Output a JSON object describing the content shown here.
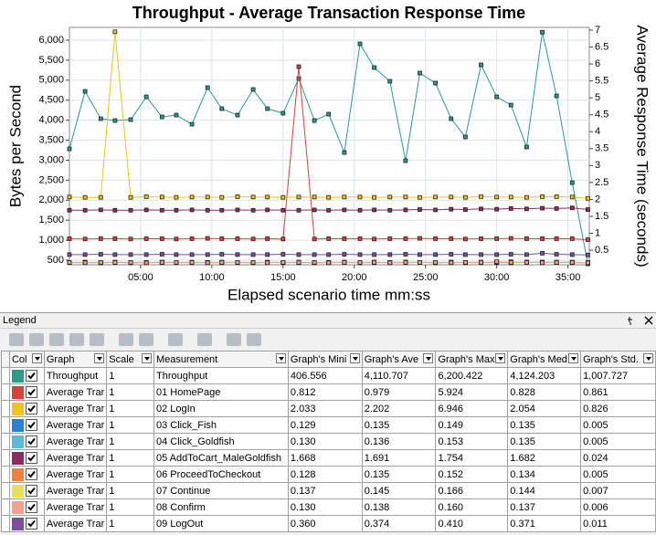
{
  "chart_data": {
    "type": "line",
    "title": "Throughput - Average Transaction Response Time",
    "xlabel": "Elapsed scenario time mm:ss",
    "ylabel": "Bytes per Second",
    "y2label": "Average Response Time (seconds)",
    "x": [
      0,
      1.1,
      2.2,
      3.2,
      4.3,
      5.4,
      6.5,
      7.5,
      8.6,
      9.7,
      10.7,
      11.8,
      12.9,
      13.9,
      15.0,
      16.1,
      17.2,
      18.2,
      19.3,
      20.4,
      21.4,
      22.5,
      23.6,
      24.6,
      25.7,
      26.8,
      27.8,
      28.9,
      30.0,
      31.0,
      32.1,
      33.2,
      34.2,
      35.3,
      36.4
    ],
    "xlim": [
      0,
      36.5
    ],
    "xticks": [
      {
        "value": 5,
        "label": "05:00"
      },
      {
        "value": 10,
        "label": "10:00"
      },
      {
        "value": 15,
        "label": "15:00"
      },
      {
        "value": 20,
        "label": "20:00"
      },
      {
        "value": 25,
        "label": "25:00"
      },
      {
        "value": 30,
        "label": "30:00"
      },
      {
        "value": 35,
        "label": "35:00"
      }
    ],
    "ylim": [
      386,
      6320
    ],
    "yticks": [
      500,
      {
        "value": 1000,
        "label": "1,000"
      },
      {
        "value": 1500,
        "label": "1,500"
      },
      {
        "value": 2000,
        "label": "2,000"
      },
      {
        "value": 2500,
        "label": "2,500"
      },
      {
        "value": 3000,
        "label": "3,000"
      },
      {
        "value": 3500,
        "label": "3,500"
      },
      {
        "value": 4000,
        "label": "4,000"
      },
      {
        "value": 4500,
        "label": "4,500"
      },
      {
        "value": 5000,
        "label": "5,000"
      },
      {
        "value": 5500,
        "label": "5,500"
      },
      {
        "value": 6000,
        "label": "6,000"
      }
    ],
    "y2lim": [
      0.07,
      7.08
    ],
    "y2ticks": [
      0.5,
      1,
      1.5,
      2,
      2.5,
      3,
      3.5,
      4,
      4.5,
      5,
      5.5,
      6,
      6.5,
      7
    ],
    "grid": true,
    "series": [
      {
        "name": "Throughput",
        "color": "#2e9a8a",
        "values": [
          3283,
          4721,
          4037,
          3991,
          4014,
          4584,
          4082,
          4128,
          3900,
          4813,
          4288,
          4128,
          4767,
          4288,
          4174,
          5041,
          3991,
          4151,
          3192,
          5909,
          5315,
          4973,
          2986,
          5178,
          4927,
          4037,
          3580,
          5384,
          4584,
          4379,
          3329,
          6200,
          4607,
          2438,
          407
        ]
      },
      {
        "name": "01 HomePage",
        "color": "#d9413a",
        "axis": "y2",
        "values": [
          0.84,
          0.83,
          0.84,
          0.84,
          0.83,
          0.84,
          0.84,
          0.83,
          0.84,
          0.85,
          0.84,
          0.84,
          0.83,
          0.84,
          0.83,
          5.92,
          0.83,
          0.84,
          0.84,
          0.84,
          0.83,
          0.84,
          0.84,
          0.85,
          0.84,
          0.84,
          0.83,
          0.84,
          0.84,
          0.85,
          0.84,
          0.84,
          0.84,
          0.84,
          0.81
        ]
      },
      {
        "name": "02 LogIn",
        "color": "#f0c419",
        "axis": "y2",
        "values": [
          2.07,
          2.06,
          2.06,
          6.95,
          2.06,
          2.08,
          2.07,
          2.06,
          2.07,
          2.07,
          2.06,
          2.08,
          2.07,
          2.07,
          2.06,
          2.07,
          2.07,
          2.06,
          2.07,
          2.07,
          2.06,
          2.07,
          2.07,
          2.06,
          2.07,
          2.07,
          2.06,
          2.08,
          2.07,
          2.07,
          2.06,
          2.08,
          2.08,
          2.07,
          2.03
        ]
      },
      {
        "name": "03 Click_Fish",
        "color": "#2a7fd0",
        "axis": "y2",
        "values": [
          0.14,
          0.13,
          0.14,
          0.14,
          0.13,
          0.14,
          0.14,
          0.14,
          0.13,
          0.14,
          0.14,
          0.14,
          0.13,
          0.14,
          0.14,
          0.14,
          0.13,
          0.14,
          0.14,
          0.14,
          0.13,
          0.14,
          0.14,
          0.14,
          0.13,
          0.14,
          0.14,
          0.14,
          0.13,
          0.14,
          0.14,
          0.15,
          0.14,
          0.14,
          0.13
        ]
      },
      {
        "name": "04 Click_Goldfish",
        "color": "#5fb8d8",
        "axis": "y2",
        "values": [
          0.14,
          0.14,
          0.13,
          0.14,
          0.14,
          0.14,
          0.13,
          0.14,
          0.14,
          0.14,
          0.14,
          0.13,
          0.14,
          0.14,
          0.14,
          0.13,
          0.14,
          0.14,
          0.14,
          0.13,
          0.14,
          0.14,
          0.15,
          0.14,
          0.14,
          0.13,
          0.14,
          0.14,
          0.14,
          0.13,
          0.14,
          0.14,
          0.14,
          0.15,
          0.13
        ]
      },
      {
        "name": "05 AddToCart_MaleGoldfish",
        "color": "#8b2e5f",
        "axis": "y2",
        "values": [
          1.68,
          1.68,
          1.69,
          1.68,
          1.68,
          1.69,
          1.68,
          1.68,
          1.69,
          1.68,
          1.68,
          1.69,
          1.68,
          1.69,
          1.68,
          1.68,
          1.69,
          1.68,
          1.69,
          1.68,
          1.69,
          1.68,
          1.69,
          1.7,
          1.69,
          1.71,
          1.7,
          1.72,
          1.71,
          1.73,
          1.72,
          1.74,
          1.73,
          1.75,
          1.7
        ]
      },
      {
        "name": "06 ProceedToCheckout",
        "color": "#f08040",
        "axis": "y2",
        "values": [
          0.13,
          0.14,
          0.13,
          0.14,
          0.13,
          0.13,
          0.14,
          0.13,
          0.14,
          0.13,
          0.13,
          0.14,
          0.13,
          0.14,
          0.13,
          0.14,
          0.13,
          0.13,
          0.14,
          0.13,
          0.14,
          0.13,
          0.13,
          0.14,
          0.13,
          0.14,
          0.13,
          0.13,
          0.14,
          0.13,
          0.15,
          0.13,
          0.14,
          0.13,
          0.13
        ]
      },
      {
        "name": "07 Continue",
        "color": "#e8e05a",
        "axis": "y2",
        "values": [
          0.14,
          0.15,
          0.14,
          0.15,
          0.14,
          0.14,
          0.15,
          0.14,
          0.15,
          0.14,
          0.15,
          0.14,
          0.14,
          0.15,
          0.14,
          0.15,
          0.14,
          0.14,
          0.15,
          0.14,
          0.15,
          0.14,
          0.15,
          0.14,
          0.14,
          0.15,
          0.14,
          0.15,
          0.14,
          0.16,
          0.15,
          0.14,
          0.15,
          0.14,
          0.14
        ]
      },
      {
        "name": "08 Confirm",
        "color": "#f4a090",
        "axis": "y2",
        "values": [
          0.14,
          0.13,
          0.14,
          0.14,
          0.14,
          0.13,
          0.14,
          0.14,
          0.14,
          0.13,
          0.14,
          0.14,
          0.14,
          0.13,
          0.14,
          0.14,
          0.14,
          0.13,
          0.14,
          0.14,
          0.14,
          0.13,
          0.14,
          0.14,
          0.14,
          0.13,
          0.14,
          0.14,
          0.16,
          0.14,
          0.14,
          0.13,
          0.14,
          0.14,
          0.13
        ]
      },
      {
        "name": "09 LogOut",
        "color": "#7a4fa0",
        "axis": "y2",
        "values": [
          0.37,
          0.37,
          0.38,
          0.37,
          0.37,
          0.37,
          0.38,
          0.37,
          0.37,
          0.37,
          0.38,
          0.37,
          0.37,
          0.37,
          0.38,
          0.37,
          0.37,
          0.37,
          0.38,
          0.37,
          0.37,
          0.37,
          0.38,
          0.37,
          0.37,
          0.38,
          0.37,
          0.37,
          0.37,
          0.38,
          0.37,
          0.41,
          0.38,
          0.37,
          0.36
        ]
      }
    ]
  },
  "legend": {
    "title": "Legend",
    "columns": [
      "Col",
      "Graph",
      "Scale",
      "Measurement",
      "Graph's Mini",
      "Graph's Ave",
      "Graph's Max",
      "Graph's Med",
      "Graph's Std."
    ],
    "rows": [
      {
        "graph": "Throughput",
        "scale": "1",
        "stats": [
          "406.556",
          "4,110.707",
          "6,200.422",
          "4,124.203",
          "1,007.727"
        ]
      },
      {
        "graph": "Average Trar",
        "scale": "1",
        "stats": [
          "0.812",
          "0.979",
          "5.924",
          "0.828",
          "0.861"
        ]
      },
      {
        "graph": "Average Trar",
        "scale": "1",
        "stats": [
          "2.033",
          "2.202",
          "6.946",
          "2.054",
          "0.826"
        ]
      },
      {
        "graph": "Average Trar",
        "scale": "1",
        "stats": [
          "0.129",
          "0.135",
          "0.149",
          "0.135",
          "0.005"
        ]
      },
      {
        "graph": "Average Trar",
        "scale": "1",
        "stats": [
          "0.130",
          "0.136",
          "0.153",
          "0.135",
          "0.005"
        ]
      },
      {
        "graph": "Average Trar",
        "scale": "1",
        "stats": [
          "1.668",
          "1.691",
          "1.754",
          "1.682",
          "0.024"
        ]
      },
      {
        "graph": "Average Trar",
        "scale": "1",
        "stats": [
          "0.128",
          "0.135",
          "0.152",
          "0.134",
          "0.005"
        ]
      },
      {
        "graph": "Average Trar",
        "scale": "1",
        "stats": [
          "0.137",
          "0.145",
          "0.166",
          "0.144",
          "0.007"
        ]
      },
      {
        "graph": "Average Trar",
        "scale": "1",
        "stats": [
          "0.130",
          "0.138",
          "0.160",
          "0.137",
          "0.006"
        ]
      },
      {
        "graph": "Average Trar",
        "scale": "1",
        "stats": [
          "0.360",
          "0.374",
          "0.410",
          "0.371",
          "0.011"
        ]
      }
    ]
  }
}
